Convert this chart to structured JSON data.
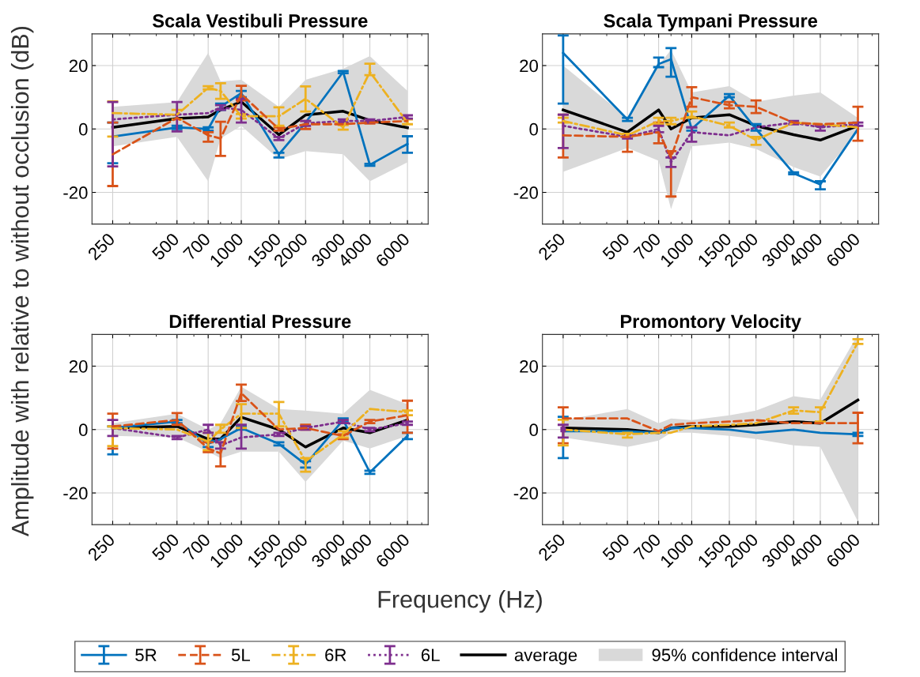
{
  "chart_data": [
    {
      "type": "line",
      "title": "Scala Vestibuli Pressure",
      "xlabel": "Frequency (Hz)",
      "ylabel": "Amplitude with relative to without occlusion (dB)",
      "legend": "bottom",
      "log": "x",
      "grid": true,
      "annotations": [
        "95% confidence interval"
      ],
      "x": [
        250,
        500,
        700,
        800,
        1000,
        1500,
        2000,
        3000,
        4000,
        6000
      ],
      "xlim": [
        200,
        7500
      ],
      "xticks": [
        250,
        500,
        700,
        1000,
        1500,
        2000,
        3000,
        4000,
        6000,
        {
          "value": 300,
          "label": null
        },
        {
          "value": 400,
          "label": null
        },
        {
          "value": 600,
          "label": null
        },
        {
          "value": 800,
          "label": null
        },
        {
          "value": 900,
          "label": null
        },
        {
          "value": 5000,
          "label": null
        },
        {
          "value": 7000,
          "label": null
        }
      ],
      "ylim": [
        -30,
        30
      ],
      "yticks": [
        -20,
        0,
        20
      ],
      "series": [
        {
          "name": "5R",
          "color": "#0072bd",
          "line_style": "solid",
          "values": [
            -2.4,
            0.5,
            0,
            7,
            11.3,
            -8,
            2,
            18,
            -11.3,
            -4.7
          ],
          "errors": [
            [
              -10.8,
              2
            ],
            [
              0,
              1
            ],
            [
              -0.5,
              0.5
            ],
            [
              6,
              8
            ],
            [
              10,
              12
            ],
            [
              -9,
              -7.5
            ],
            null,
            [
              17.6,
              18.3
            ],
            [
              -11.6,
              -11
            ],
            [
              -7.5,
              -2.3
            ]
          ]
        },
        {
          "name": "5L",
          "color": "#d95319",
          "line_style": "dashed",
          "values": [
            -8,
            3.5,
            -2,
            -3,
            11,
            0,
            1.5,
            1.5,
            2,
            2.5
          ],
          "errors": [
            [
              -18,
              2
            ],
            null,
            [
              -4,
              -1
            ],
            [
              -8.5,
              2.3
            ],
            [
              9,
              13.6
            ],
            [
              -0.5,
              0.5
            ],
            [
              0,
              2.5
            ],
            null,
            [
              1.7,
              2.3
            ],
            null
          ]
        },
        {
          "name": "6R",
          "color": "#edb120",
          "line_style": "dashdot",
          "values": [
            5,
            4.5,
            13,
            12,
            4,
            4,
            9.5,
            0.5,
            18,
            2
          ],
          "errors": [
            [
              -2.4,
              8.7
            ],
            [
              3,
              6
            ],
            [
              12.5,
              13.5
            ],
            [
              9.5,
              14.4
            ],
            [
              3.3,
              4.7
            ],
            [
              1,
              6.8
            ],
            [
              5.5,
              13.4
            ],
            [
              -0.2,
              1.2
            ],
            [
              17,
              20.6
            ],
            [
              1.5,
              3
            ]
          ]
        },
        {
          "name": "6L",
          "color": "#7e2f8e",
          "line_style": "dotted",
          "values": [
            3,
            4.5,
            5,
            6.8,
            6,
            -3,
            1.8,
            2.5,
            2.5,
            3.8
          ],
          "errors": [
            [
              -11.8,
              8.5
            ],
            [
              -0.8,
              8.5
            ],
            null,
            [
              6,
              7.5
            ],
            [
              2,
              9.5
            ],
            [
              -3.5,
              -2.5
            ],
            [
              1,
              2.5
            ],
            [
              2,
              3
            ],
            [
              2,
              3
            ],
            [
              3.3,
              4.3
            ]
          ]
        },
        {
          "name": "average",
          "color": "#000000",
          "line_style": "solid",
          "values": [
            0.5,
            3.3,
            3.8,
            6,
            8.6,
            -1.8,
            4.4,
            5.6,
            2.7,
            0.4
          ],
          "lower": [
            -5.5,
            -2.5,
            -16.5,
            -3,
            1,
            -9.5,
            -7,
            -8,
            -16.5,
            -10.5
          ],
          "upper": [
            7,
            8.5,
            24,
            15,
            15.5,
            7,
            15.5,
            19,
            23,
            12
          ]
        }
      ]
    },
    {
      "type": "line",
      "title": "Scala Tympani Pressure",
      "log": "x",
      "grid": true,
      "x": [
        250,
        500,
        700,
        800,
        1000,
        1500,
        2000,
        3000,
        4000,
        6000
      ],
      "xlim": [
        200,
        7500
      ],
      "xticks": [
        250,
        500,
        700,
        1000,
        1500,
        2000,
        3000,
        4000,
        6000,
        {
          "value": 300,
          "label": null
        },
        {
          "value": 400,
          "label": null
        },
        {
          "value": 600,
          "label": null
        },
        {
          "value": 800,
          "label": null
        },
        {
          "value": 900,
          "label": null
        },
        {
          "value": 5000,
          "label": null
        },
        {
          "value": 7000,
          "label": null
        }
      ],
      "ylim": [
        -30,
        30
      ],
      "yticks": [
        -20,
        0,
        20
      ],
      "series": [
        {
          "color": "#0072bd",
          "line_style": "solid",
          "values": [
            24,
            3,
            20.5,
            22,
            0,
            10.5,
            0,
            -14,
            -17.5,
            0
          ],
          "errors": [
            [
              8,
              29.5
            ],
            [
              2.5,
              3.5
            ],
            [
              19.5,
              22.5
            ],
            [
              16.5,
              25.5
            ],
            [
              -0.5,
              0.5
            ],
            [
              10,
              11
            ],
            [
              -0.5,
              1.5
            ],
            [
              -14.3,
              -13.7
            ],
            [
              -19,
              -16.5
            ],
            null
          ]
        },
        {
          "color": "#d95319",
          "line_style": "dashed",
          "values": [
            -2,
            -2.5,
            -1,
            -9,
            10,
            7.5,
            7,
            2,
            1.5,
            2
          ],
          "errors": [
            [
              -9,
              4.5
            ],
            [
              -7.2,
              -2
            ],
            [
              -4.5,
              2
            ],
            [
              -21.3,
              -7
            ],
            [
              7,
              13.2
            ],
            [
              6.5,
              8.5
            ],
            [
              5,
              9
            ],
            null,
            null,
            [
              -3.7,
              7
            ]
          ]
        },
        {
          "color": "#edb120",
          "line_style": "dashdot",
          "values": [
            2.5,
            -2,
            2.5,
            2.5,
            4,
            1,
            -3.5,
            2,
            1.5,
            0.5
          ],
          "errors": [
            [
              2,
              3.5
            ],
            [
              -2.5,
              -1.5
            ],
            [
              1.5,
              3.5
            ],
            [
              1.5,
              3.5
            ],
            [
              3.5,
              5.5
            ],
            [
              0.5,
              2
            ],
            [
              -5,
              -2.5
            ],
            null,
            null,
            null
          ]
        },
        {
          "color": "#7e2f8e",
          "line_style": "dotted",
          "values": [
            1,
            -2.5,
            0,
            -10.5,
            -1,
            -2,
            0.5,
            2,
            0.5,
            1.5
          ],
          "errors": [
            [
              -6,
              4.5
            ],
            [
              -3,
              -2
            ],
            [
              -1,
              1
            ],
            [
              -12,
              -9
            ],
            [
              -4,
              0.5
            ],
            null,
            null,
            [
              1.5,
              2.5
            ],
            [
              -0.5,
              1
            ],
            [
              1,
              2
            ]
          ]
        },
        {
          "color": "#000000",
          "line_style": "solid",
          "values": [
            6,
            -1,
            6,
            0,
            3.5,
            4.5,
            1,
            -1.8,
            -3.5,
            1
          ],
          "lower": [
            -13.5,
            -6,
            -10,
            -25.3,
            -5.5,
            -4.3,
            -6.3,
            -12,
            -15,
            -1
          ],
          "upper": [
            20,
            3.5,
            20,
            25,
            11.5,
            13.5,
            8.6,
            10.5,
            11.5,
            3.5
          ]
        }
      ]
    },
    {
      "type": "line",
      "title": "Differential Pressure",
      "log": "x",
      "grid": true,
      "x": [
        250,
        500,
        700,
        800,
        1000,
        1500,
        2000,
        3000,
        4000,
        6000
      ],
      "xlim": [
        200,
        7500
      ],
      "xticks": [
        250,
        500,
        700,
        1000,
        1500,
        2000,
        3000,
        4000,
        6000,
        {
          "value": 300,
          "label": null
        },
        {
          "value": 400,
          "label": null
        },
        {
          "value": 600,
          "label": null
        },
        {
          "value": 800,
          "label": null
        },
        {
          "value": 900,
          "label": null
        },
        {
          "value": 5000,
          "label": null
        },
        {
          "value": 7000,
          "label": null
        }
      ],
      "ylim": [
        -30,
        30
      ],
      "yticks": [
        -20,
        0,
        20
      ],
      "series": [
        {
          "color": "#0072bd",
          "line_style": "solid",
          "values": [
            0.5,
            2.5,
            -4.5,
            -3,
            0.5,
            -4.5,
            -11,
            3,
            -13.5,
            -2
          ],
          "errors": [
            [
              -7.8,
              1
            ],
            [
              2,
              3
            ],
            [
              -5.5,
              -3.5
            ],
            null,
            [
              0,
              1
            ],
            [
              -5,
              -4
            ],
            [
              -12,
              -10
            ],
            [
              2.5,
              3.5
            ],
            [
              -14,
              -13
            ],
            [
              -3,
              -1
            ]
          ]
        },
        {
          "color": "#d95319",
          "line_style": "dashed",
          "values": [
            1,
            3,
            -6,
            -7.5,
            11.5,
            0,
            0.5,
            -2,
            2.5,
            4.5
          ],
          "errors": [
            [
              -6,
              5
            ],
            [
              1.5,
              5.2
            ],
            [
              -7.1,
              -4
            ],
            [
              -11.6,
              -4
            ],
            [
              9,
              14.2
            ],
            null,
            [
              0,
              1.5
            ],
            [
              -3,
              -1.5
            ],
            [
              2,
              3
            ],
            [
              -1,
              9.1
            ]
          ]
        },
        {
          "color": "#edb120",
          "line_style": "dashdot",
          "values": [
            0.5,
            0,
            -3.8,
            0,
            5,
            5,
            -10,
            -1.5,
            6.5,
            5.5
          ],
          "errors": [
            [
              -5.2,
              1
            ],
            null,
            [
              -6.5,
              -1
            ],
            [
              -1,
              1.5
            ],
            [
              0.5,
              8
            ],
            [
              1,
              8.7
            ],
            [
              -13.3,
              -9
            ],
            [
              -2.5,
              -0.5
            ],
            null,
            [
              4.5,
              6
            ]
          ]
        },
        {
          "color": "#7e2f8e",
          "line_style": "dotted",
          "values": [
            0.5,
            -2.5,
            0,
            -5,
            -2.5,
            -1.5,
            0.5,
            2.5,
            0,
            2
          ],
          "errors": [
            [
              -2,
              3
            ],
            [
              -3,
              -2
            ],
            [
              -1,
              1.5
            ],
            [
              -6,
              -4
            ],
            [
              -6,
              1.5
            ],
            [
              -2,
              -1
            ],
            [
              0,
              1
            ],
            [
              2,
              3
            ],
            [
              -0.5,
              0.5
            ],
            [
              1.5,
              2.5
            ]
          ]
        },
        {
          "color": "#000000",
          "line_style": "solid",
          "values": [
            0.5,
            1,
            -3,
            -3,
            3.9,
            0,
            -5.5,
            0.5,
            -1,
            3
          ],
          "lower": [
            -2,
            -2.5,
            -7,
            -9,
            -7,
            -7,
            -16.5,
            -3.5,
            -6,
            -2
          ],
          "upper": [
            2,
            5,
            0,
            2,
            13.5,
            6.5,
            6,
            5,
            12.5,
            8
          ]
        }
      ]
    },
    {
      "type": "line",
      "title": "Promontory Velocity",
      "log": "x",
      "grid": true,
      "x": [
        250,
        500,
        700,
        800,
        1000,
        1500,
        2000,
        3000,
        4000,
        6000
      ],
      "xlim": [
        200,
        7500
      ],
      "xticks": [
        250,
        500,
        700,
        1000,
        1500,
        2000,
        3000,
        4000,
        6000,
        {
          "value": 300,
          "label": null
        },
        {
          "value": 400,
          "label": null
        },
        {
          "value": 600,
          "label": null
        },
        {
          "value": 800,
          "label": null
        },
        {
          "value": 900,
          "label": null
        },
        {
          "value": 5000,
          "label": null
        },
        {
          "value": 7000,
          "label": null
        }
      ],
      "ylim": [
        -30,
        30
      ],
      "yticks": [
        -20,
        0,
        20
      ],
      "series": [
        {
          "color": "#0072bd",
          "line_style": "solid",
          "values": [
            -0.5,
            -0.5,
            -1,
            0.5,
            0.5,
            0,
            -1,
            0,
            -1,
            -1.5
          ],
          "errors": [
            [
              -9,
              4
            ],
            null,
            null,
            null,
            null,
            null,
            null,
            null,
            null,
            [
              -2,
              -1
            ]
          ]
        },
        {
          "color": "#d95319",
          "line_style": "dashed",
          "values": [
            3.5,
            3.5,
            -0.5,
            1.5,
            2,
            2.5,
            3,
            2,
            2,
            2
          ],
          "errors": [
            [
              -4.3,
              7
            ],
            null,
            null,
            null,
            null,
            null,
            null,
            null,
            null,
            [
              -4.3,
              5.3
            ]
          ]
        },
        {
          "color": "#edb120",
          "line_style": "dashdot",
          "values": [
            0,
            -1.5,
            -1,
            -1,
            1,
            1.5,
            2,
            6,
            5.5,
            27.5
          ],
          "errors": [
            [
              -5,
              3.1
            ],
            [
              -2.5,
              -1
            ],
            null,
            null,
            null,
            null,
            null,
            [
              5,
              7
            ],
            [
              2.5,
              7
            ],
            [
              27,
              28.5
            ]
          ]
        },
        {
          "color": "#7e2f8e",
          "line_style": "dotted",
          "marker": "square",
          "values": [
            0,
            null,
            null,
            null,
            null,
            null,
            null,
            null,
            null,
            null
          ],
          "errors": [
            [
              -2.5,
              1.5
            ],
            null,
            null,
            null,
            null,
            null,
            null,
            null,
            null,
            null
          ]
        },
        {
          "color": "#000000",
          "line_style": "solid",
          "values": [
            0.5,
            0,
            -1,
            0.5,
            1,
            1,
            1.5,
            2.5,
            2,
            9.3
          ],
          "lower": [
            -2.5,
            -5.5,
            -3.5,
            -1,
            -1,
            -2,
            -3,
            -5,
            -5.5,
            -29
          ],
          "upper": [
            3,
            6.5,
            2,
            3.5,
            3,
            4.5,
            6,
            10.5,
            9.5,
            30
          ]
        }
      ]
    }
  ]
}
